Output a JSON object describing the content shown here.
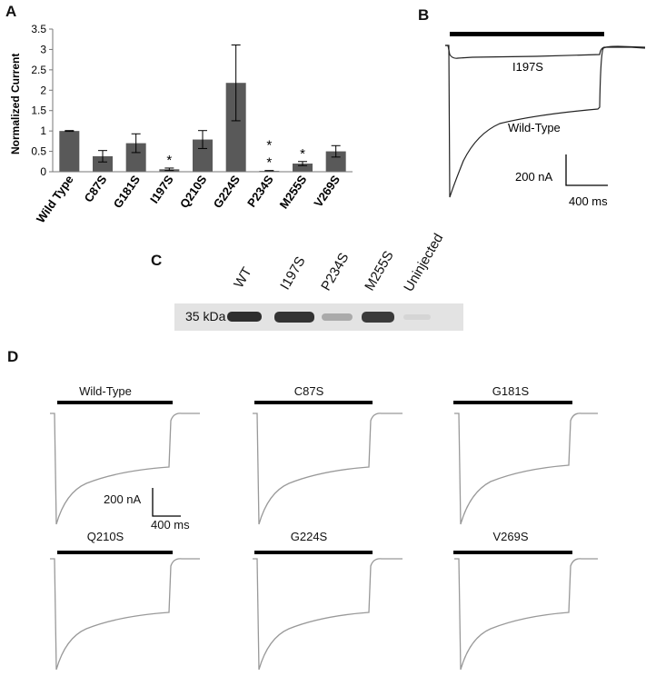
{
  "panels": {
    "a": "A",
    "b": "B",
    "c": "C",
    "d": "D"
  },
  "chart_data": [
    {
      "type": "bar",
      "panel": "A",
      "ylabel": "Normalized Current",
      "ylim": [
        0,
        3.5
      ],
      "yticks": [
        "0",
        "0.5",
        "1",
        "1.5",
        "2",
        "2.5",
        "3",
        "3.5"
      ],
      "categories": [
        "Wild Type",
        "C87S",
        "G181S",
        "I197S",
        "Q210S",
        "G224S",
        "P234S",
        "M255S",
        "V269S"
      ],
      "values": [
        1.0,
        0.38,
        0.7,
        0.06,
        0.79,
        2.18,
        0.02,
        0.2,
        0.5
      ],
      "errors": [
        0.01,
        0.14,
        0.23,
        0.03,
        0.22,
        0.93,
        0.01,
        0.05,
        0.14
      ],
      "significance": [
        "",
        "",
        "",
        "*",
        "",
        "",
        "* *",
        "*",
        ""
      ],
      "bar_color": "#595959",
      "grid": false
    },
    {
      "type": "line",
      "panel": "B",
      "series": [
        {
          "name": "I197S",
          "color": "#222222"
        },
        {
          "name": "Wild-Type",
          "color": "#222222"
        }
      ],
      "scale_bar": {
        "current": "200 nA",
        "time": "400 ms"
      }
    },
    {
      "type": "line",
      "panel": "D",
      "traces": [
        "Wild-Type",
        "C87S",
        "G181S",
        "Q210S",
        "G224S",
        "V269S"
      ],
      "trace_color": "#999999",
      "scale_bar": {
        "current": "200 nA",
        "time": "400 ms"
      }
    }
  ],
  "western_blot": {
    "lanes": [
      "WT",
      "I197S",
      "P234S",
      "M255S",
      "Uninjected"
    ],
    "marker": "35 kDa",
    "band_intensity": [
      0.9,
      0.85,
      0.3,
      0.8,
      0.08
    ]
  }
}
